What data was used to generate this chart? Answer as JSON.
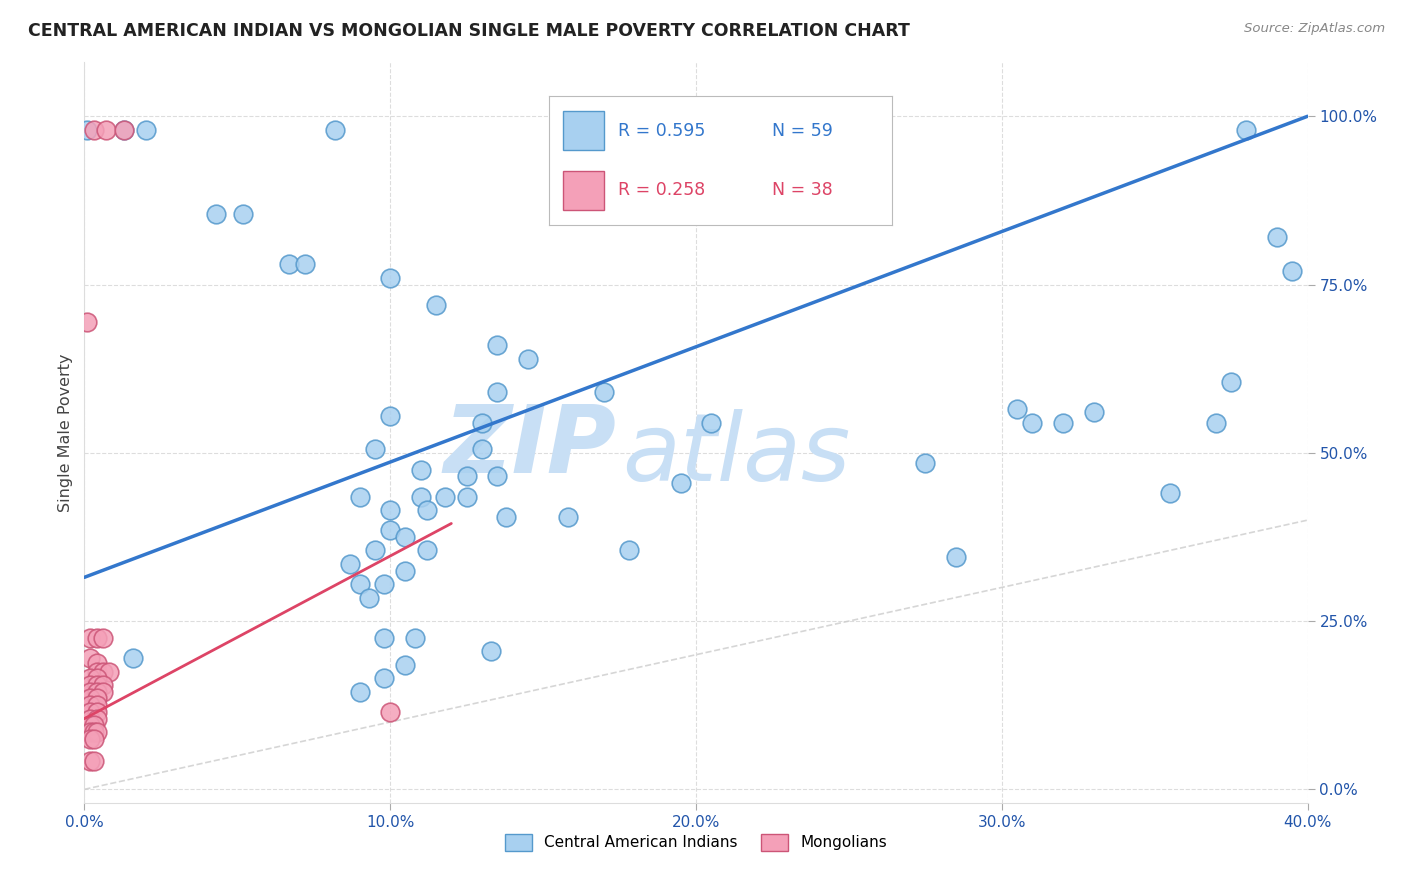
{
  "title": "CENTRAL AMERICAN INDIAN VS MONGOLIAN SINGLE MALE POVERTY CORRELATION CHART",
  "source": "Source: ZipAtlas.com",
  "ylabel": "Single Male Poverty",
  "xlim": [
    0.0,
    0.4
  ],
  "ylim": [
    -0.02,
    1.08
  ],
  "xticks": [
    0.0,
    0.1,
    0.2,
    0.3,
    0.4
  ],
  "yticks": [
    0.0,
    0.25,
    0.5,
    0.75,
    1.0
  ],
  "xtick_labels": [
    "0.0%",
    "10.0%",
    "20.0%",
    "30.0%",
    "40.0%"
  ],
  "ytick_labels": [
    "0.0%",
    "25.0%",
    "50.0%",
    "75.0%",
    "100.0%"
  ],
  "blue_label": "Central American Indians",
  "pink_label": "Mongolians",
  "blue_color": "#A8D0F0",
  "blue_edge": "#5599CC",
  "pink_color": "#F4A0B8",
  "pink_edge": "#CC5577",
  "blue_line_color": "#3377CC",
  "pink_line_color": "#DD4466",
  "ref_line_color": "#CCCCCC",
  "watermark_zip": "ZIP",
  "watermark_atlas": "atlas",
  "blue_dots": [
    [
      0.001,
      0.98
    ],
    [
      0.013,
      0.98
    ],
    [
      0.02,
      0.98
    ],
    [
      0.082,
      0.98
    ],
    [
      0.24,
      0.98
    ],
    [
      0.38,
      0.98
    ],
    [
      0.043,
      0.855
    ],
    [
      0.052,
      0.855
    ],
    [
      0.067,
      0.78
    ],
    [
      0.072,
      0.78
    ],
    [
      0.1,
      0.76
    ],
    [
      0.115,
      0.72
    ],
    [
      0.135,
      0.66
    ],
    [
      0.145,
      0.64
    ],
    [
      0.135,
      0.59
    ],
    [
      0.17,
      0.59
    ],
    [
      0.1,
      0.555
    ],
    [
      0.13,
      0.545
    ],
    [
      0.205,
      0.545
    ],
    [
      0.095,
      0.505
    ],
    [
      0.13,
      0.505
    ],
    [
      0.11,
      0.475
    ],
    [
      0.125,
      0.465
    ],
    [
      0.135,
      0.465
    ],
    [
      0.195,
      0.455
    ],
    [
      0.09,
      0.435
    ],
    [
      0.11,
      0.435
    ],
    [
      0.118,
      0.435
    ],
    [
      0.125,
      0.435
    ],
    [
      0.1,
      0.415
    ],
    [
      0.112,
      0.415
    ],
    [
      0.138,
      0.405
    ],
    [
      0.158,
      0.405
    ],
    [
      0.1,
      0.385
    ],
    [
      0.105,
      0.375
    ],
    [
      0.095,
      0.355
    ],
    [
      0.112,
      0.355
    ],
    [
      0.178,
      0.355
    ],
    [
      0.087,
      0.335
    ],
    [
      0.105,
      0.325
    ],
    [
      0.09,
      0.305
    ],
    [
      0.098,
      0.305
    ],
    [
      0.093,
      0.285
    ],
    [
      0.098,
      0.225
    ],
    [
      0.108,
      0.225
    ],
    [
      0.133,
      0.205
    ],
    [
      0.105,
      0.185
    ],
    [
      0.098,
      0.165
    ],
    [
      0.09,
      0.145
    ],
    [
      0.016,
      0.195
    ],
    [
      0.305,
      0.565
    ],
    [
      0.31,
      0.545
    ],
    [
      0.275,
      0.485
    ],
    [
      0.285,
      0.345
    ],
    [
      0.32,
      0.545
    ],
    [
      0.33,
      0.56
    ],
    [
      0.355,
      0.44
    ],
    [
      0.37,
      0.545
    ],
    [
      0.375,
      0.605
    ],
    [
      0.395,
      0.77
    ],
    [
      0.39,
      0.82
    ]
  ],
  "pink_dots": [
    [
      0.001,
      0.695
    ],
    [
      0.003,
      0.98
    ],
    [
      0.007,
      0.98
    ],
    [
      0.013,
      0.98
    ],
    [
      0.002,
      0.225
    ],
    [
      0.004,
      0.225
    ],
    [
      0.006,
      0.225
    ],
    [
      0.002,
      0.195
    ],
    [
      0.004,
      0.188
    ],
    [
      0.004,
      0.175
    ],
    [
      0.006,
      0.175
    ],
    [
      0.008,
      0.175
    ],
    [
      0.002,
      0.165
    ],
    [
      0.004,
      0.165
    ],
    [
      0.002,
      0.155
    ],
    [
      0.004,
      0.155
    ],
    [
      0.006,
      0.155
    ],
    [
      0.002,
      0.145
    ],
    [
      0.004,
      0.145
    ],
    [
      0.006,
      0.145
    ],
    [
      0.002,
      0.135
    ],
    [
      0.004,
      0.135
    ],
    [
      0.002,
      0.125
    ],
    [
      0.004,
      0.125
    ],
    [
      0.002,
      0.115
    ],
    [
      0.004,
      0.115
    ],
    [
      0.002,
      0.105
    ],
    [
      0.004,
      0.105
    ],
    [
      0.002,
      0.095
    ],
    [
      0.003,
      0.095
    ],
    [
      0.002,
      0.085
    ],
    [
      0.003,
      0.085
    ],
    [
      0.004,
      0.085
    ],
    [
      0.002,
      0.075
    ],
    [
      0.003,
      0.075
    ],
    [
      0.1,
      0.115
    ],
    [
      0.002,
      0.042
    ],
    [
      0.003,
      0.042
    ]
  ],
  "blue_trendline_x": [
    0.0,
    0.4
  ],
  "blue_trendline_y": [
    0.315,
    1.0
  ],
  "pink_trendline_x": [
    0.0,
    0.12
  ],
  "pink_trendline_y": [
    0.105,
    0.395
  ],
  "ref_line_x": [
    0.0,
    0.4
  ],
  "ref_line_y": [
    0.0,
    0.4
  ]
}
